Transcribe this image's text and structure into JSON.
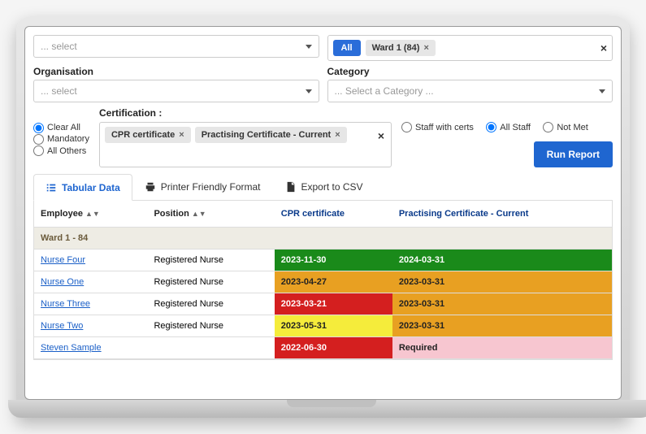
{
  "topSelect": {
    "placeholder": "... select"
  },
  "wardFilter": {
    "allLabel": "All",
    "chip": "Ward 1 (84)"
  },
  "organisation": {
    "label": "Organisation",
    "placeholder": "... select"
  },
  "category": {
    "label": "Category",
    "placeholder": "... Select a Category ..."
  },
  "certification": {
    "label": "Certification :",
    "chips": [
      "CPR certificate",
      "Practising Certificate - Current"
    ]
  },
  "leftRadios": {
    "opt1": "Clear All",
    "opt2": "Mandatory",
    "opt3": "All Others"
  },
  "staffRadios": {
    "opt1": "Staff with certs",
    "opt2": "All Staff",
    "opt3": "Not Met"
  },
  "runButton": "Run Report",
  "tabs": {
    "tabular": "Tabular Data",
    "printer": "Printer Friendly Format",
    "csv": "Export to CSV"
  },
  "table": {
    "headers": {
      "employee": "Employee",
      "position": "Position",
      "cpr": "CPR certificate",
      "practising": "Practising Certificate - Current"
    },
    "wardRow": "Ward 1 - 84",
    "rows": [
      {
        "name": "Nurse Four",
        "position": "Registered Nurse",
        "cpr": "2023-11-30",
        "cprClass": "cell-green",
        "prac": "2024-03-31",
        "pracClass": "cell-green"
      },
      {
        "name": "Nurse One",
        "position": "Registered Nurse",
        "cpr": "2023-04-27",
        "cprClass": "cell-orange",
        "prac": "2023-03-31",
        "pracClass": "cell-orange"
      },
      {
        "name": "Nurse Three",
        "position": "Registered Nurse",
        "cpr": "2023-03-21",
        "cprClass": "cell-red",
        "prac": "2023-03-31",
        "pracClass": "cell-orange"
      },
      {
        "name": "Nurse Two",
        "position": "Registered Nurse",
        "cpr": "2023-05-31",
        "cprClass": "cell-yellow",
        "prac": "2023-03-31",
        "pracClass": "cell-orange"
      },
      {
        "name": "Steven Sample",
        "position": "",
        "cpr": "2022-06-30",
        "cprClass": "cell-red",
        "prac": "Required",
        "pracClass": "cell-pink"
      }
    ]
  },
  "colors": {
    "green": "#1a8a1a",
    "orange": "#e8a022",
    "yellow": "#f5ec3b",
    "red": "#d41f1f",
    "pink": "#f7c6d0",
    "blue": "#1f66d0"
  }
}
